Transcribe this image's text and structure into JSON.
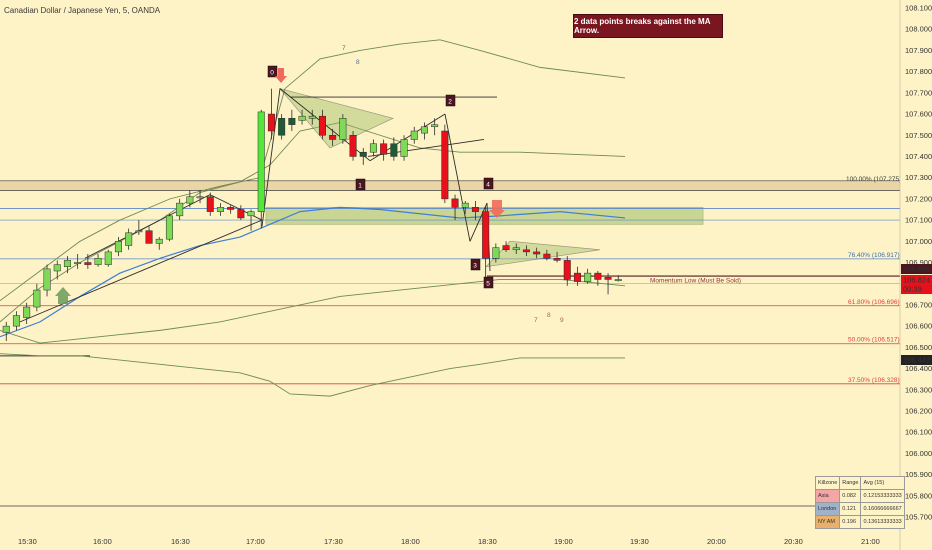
{
  "header": {
    "title": "Canadian Dollar / Japanese Yen, 5, OANDA"
  },
  "note": {
    "text": "2 data points breaks against the MA Arrow."
  },
  "colors": {
    "background": "#fdf3c6",
    "up_candle": "#7ed957",
    "up_candle_bright": "#55e63a",
    "down_candle": "#e8101a",
    "dark_candle": "#1e5a36",
    "ma_blue": "#3f7fd4",
    "band_green": "#6e8a54",
    "fib_red": "#e04040",
    "zone_green": "#9fbf6a",
    "label_dark": "#4a1620"
  },
  "chart_data": {
    "type": "candlestick",
    "title": "Canadian Dollar / Japanese Yen, 5, OANDA",
    "x_ticks": [
      "15:30",
      "16:00",
      "16:30",
      "17:00",
      "17:30",
      "18:00",
      "18:30",
      "19:00",
      "19:30",
      "20:00",
      "20:30",
      "21:00"
    ],
    "y_ticks": [
      "108.100",
      "108.000",
      "107.900",
      "107.800",
      "107.700",
      "107.600",
      "107.500",
      "107.400",
      "107.300",
      "107.200",
      "107.100",
      "107.000",
      "106.900",
      "106.800",
      "106.700",
      "106.600",
      "106.500",
      "106.400",
      "106.300",
      "106.200",
      "106.100",
      "106.000",
      "105.900",
      "105.800",
      "105.700"
    ],
    "ylim": [
      105.66,
      108.12
    ],
    "candles": [
      {
        "o": 106.57,
        "h": 106.62,
        "l": 106.53,
        "c": 106.6
      },
      {
        "o": 106.6,
        "h": 106.67,
        "l": 106.58,
        "c": 106.65
      },
      {
        "o": 106.64,
        "h": 106.71,
        "l": 106.61,
        "c": 106.69
      },
      {
        "o": 106.69,
        "h": 106.8,
        "l": 106.67,
        "c": 106.77
      },
      {
        "o": 106.77,
        "h": 106.89,
        "l": 106.74,
        "c": 106.87
      },
      {
        "o": 106.86,
        "h": 106.91,
        "l": 106.82,
        "c": 106.89
      },
      {
        "o": 106.88,
        "h": 106.93,
        "l": 106.85,
        "c": 106.91
      },
      {
        "o": 106.9,
        "h": 106.94,
        "l": 106.87,
        "c": 106.9
      },
      {
        "o": 106.9,
        "h": 106.94,
        "l": 106.87,
        "c": 106.89
      },
      {
        "o": 106.89,
        "h": 106.94,
        "l": 106.88,
        "c": 106.92
      },
      {
        "o": 106.89,
        "h": 106.96,
        "l": 106.88,
        "c": 106.95
      },
      {
        "o": 106.95,
        "h": 107.02,
        "l": 106.93,
        "c": 107.0
      },
      {
        "o": 106.98,
        "h": 107.06,
        "l": 106.96,
        "c": 107.04
      },
      {
        "o": 107.05,
        "h": 107.1,
        "l": 107.03,
        "c": 107.05
      },
      {
        "o": 107.05,
        "h": 107.07,
        "l": 107.0,
        "c": 106.99
      },
      {
        "o": 106.99,
        "h": 107.02,
        "l": 106.96,
        "c": 107.01
      },
      {
        "o": 107.01,
        "h": 107.13,
        "l": 107.0,
        "c": 107.12
      },
      {
        "o": 107.12,
        "h": 107.2,
        "l": 107.1,
        "c": 107.18
      },
      {
        "o": 107.18,
        "h": 107.24,
        "l": 107.16,
        "c": 107.21
      },
      {
        "o": 107.21,
        "h": 107.24,
        "l": 107.18,
        "c": 107.21
      },
      {
        "o": 107.21,
        "h": 107.23,
        "l": 107.12,
        "c": 107.14
      },
      {
        "o": 107.14,
        "h": 107.18,
        "l": 107.12,
        "c": 107.16
      },
      {
        "o": 107.16,
        "h": 107.17,
        "l": 107.13,
        "c": 107.15
      },
      {
        "o": 107.15,
        "h": 107.17,
        "l": 107.1,
        "c": 107.11
      },
      {
        "o": 107.12,
        "h": 107.15,
        "l": 107.05,
        "c": 107.14
      },
      {
        "o": 107.14,
        "h": 107.62,
        "l": 107.06,
        "c": 107.61
      },
      {
        "o": 107.6,
        "h": 107.72,
        "l": 107.48,
        "c": 107.52
      },
      {
        "o": 107.5,
        "h": 107.6,
        "l": 107.48,
        "c": 107.58
      },
      {
        "o": 107.58,
        "h": 107.62,
        "l": 107.52,
        "c": 107.55
      },
      {
        "o": 107.57,
        "h": 107.62,
        "l": 107.55,
        "c": 107.59
      },
      {
        "o": 107.58,
        "h": 107.62,
        "l": 107.55,
        "c": 107.59
      },
      {
        "o": 107.59,
        "h": 107.62,
        "l": 107.48,
        "c": 107.5
      },
      {
        "o": 107.5,
        "h": 107.53,
        "l": 107.45,
        "c": 107.48
      },
      {
        "o": 107.48,
        "h": 107.6,
        "l": 107.46,
        "c": 107.58
      },
      {
        "o": 107.5,
        "h": 107.52,
        "l": 107.38,
        "c": 107.4
      },
      {
        "o": 107.4,
        "h": 107.44,
        "l": 107.36,
        "c": 107.42
      },
      {
        "o": 107.42,
        "h": 107.48,
        "l": 107.4,
        "c": 107.46
      },
      {
        "o": 107.46,
        "h": 107.48,
        "l": 107.38,
        "c": 107.41
      },
      {
        "o": 107.46,
        "h": 107.49,
        "l": 107.38,
        "c": 107.4
      },
      {
        "o": 107.4,
        "h": 107.5,
        "l": 107.38,
        "c": 107.48
      },
      {
        "o": 107.48,
        "h": 107.54,
        "l": 107.46,
        "c": 107.52
      },
      {
        "o": 107.51,
        "h": 107.56,
        "l": 107.48,
        "c": 107.54
      },
      {
        "o": 107.54,
        "h": 107.58,
        "l": 107.5,
        "c": 107.55
      },
      {
        "o": 107.52,
        "h": 107.55,
        "l": 107.18,
        "c": 107.2
      },
      {
        "o": 107.2,
        "h": 107.22,
        "l": 107.1,
        "c": 107.16
      },
      {
        "o": 107.16,
        "h": 107.19,
        "l": 107.13,
        "c": 107.18
      },
      {
        "o": 107.16,
        "h": 107.19,
        "l": 107.1,
        "c": 107.14
      },
      {
        "o": 107.14,
        "h": 107.16,
        "l": 106.79,
        "c": 106.92
      },
      {
        "o": 106.92,
        "h": 106.99,
        "l": 106.9,
        "c": 106.97
      },
      {
        "o": 106.98,
        "h": 107.0,
        "l": 106.95,
        "c": 106.96
      },
      {
        "o": 106.96,
        "h": 106.99,
        "l": 106.94,
        "c": 106.97
      },
      {
        "o": 106.96,
        "h": 106.98,
        "l": 106.93,
        "c": 106.95
      },
      {
        "o": 106.95,
        "h": 106.97,
        "l": 106.92,
        "c": 106.94
      },
      {
        "o": 106.94,
        "h": 106.96,
        "l": 106.91,
        "c": 106.92
      },
      {
        "o": 106.92,
        "h": 106.95,
        "l": 106.9,
        "c": 106.91
      },
      {
        "o": 106.91,
        "h": 106.93,
        "l": 106.79,
        "c": 106.82
      },
      {
        "o": 106.85,
        "h": 106.88,
        "l": 106.79,
        "c": 106.81
      },
      {
        "o": 106.81,
        "h": 106.87,
        "l": 106.8,
        "c": 106.85
      },
      {
        "o": 106.85,
        "h": 106.86,
        "l": 106.79,
        "c": 106.82
      },
      {
        "o": 106.83,
        "h": 106.85,
        "l": 106.75,
        "c": 106.82
      },
      {
        "o": 106.82,
        "h": 106.84,
        "l": 106.81,
        "c": 106.82
      }
    ],
    "horizontal_levels": [
      {
        "price": 107.275,
        "label": "100.00% (107.275)"
      },
      {
        "price": 106.917,
        "label": "76.40% (106.917)"
      },
      {
        "price": 106.696,
        "label": "61.80% (106.696)"
      },
      {
        "price": 106.517,
        "label": "50.00% (106.517)"
      },
      {
        "price": 106.328,
        "label": "37.50% (106.328)"
      }
    ],
    "annotations": {
      "momentum_low": "Momentum Low (Must Be Sold)",
      "wave_labels": [
        "0",
        "1",
        "2",
        "3",
        "4",
        "5"
      ],
      "count_labels_top": [
        "7",
        "8"
      ],
      "count_labels_bottom": [
        "7",
        "8",
        "9"
      ]
    },
    "price_tags": [
      {
        "text": "106.839",
        "color": "#4a1620"
      },
      {
        "text": "106.824",
        "color": "#e8101a"
      },
      {
        "text": "00:39",
        "color": "#e8101a"
      },
      {
        "text": "106.442",
        "color": "#232323"
      }
    ]
  },
  "killzone_table": {
    "headers": [
      "Killzone",
      "Range",
      "Avg (15)"
    ],
    "rows": [
      {
        "name": "Asia",
        "range": "0.082",
        "avg": "0.12153333333",
        "color": "#f4a6a6"
      },
      {
        "name": "London",
        "range": "0.121",
        "avg": "0.16066666667",
        "color": "#9fb2c9"
      },
      {
        "name": "NY AM",
        "range": "0.196",
        "avg": "0.13613333333",
        "color": "#e8b06a"
      }
    ]
  }
}
